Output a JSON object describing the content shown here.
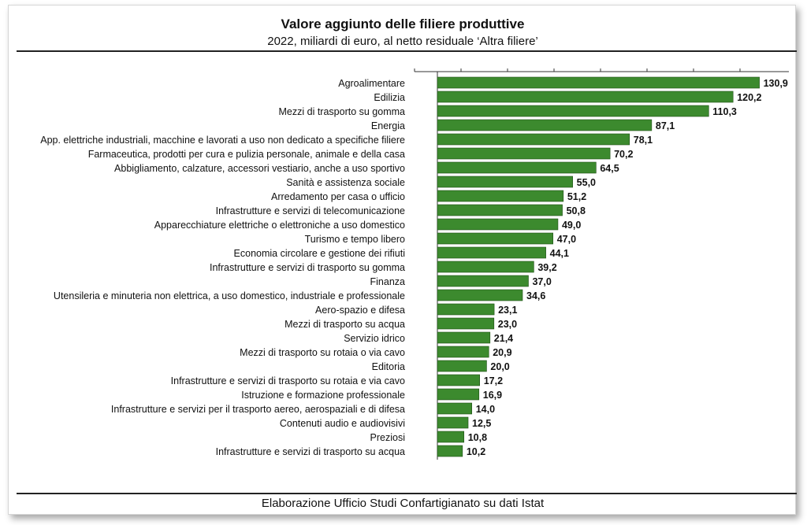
{
  "title": "Valore aggiunto delle filiere produttive",
  "subtitle": "2022, miliardi di euro, al netto residuale ‘Altra filiere’",
  "source": "Elaborazione Ufficio Studi Confartigianato su dati Istat",
  "colors": {
    "bar": "#3c8a2e",
    "bar_edge": "#1f4f17",
    "axis": "#333333"
  },
  "chart_data": {
    "type": "bar",
    "orientation": "horizontal",
    "title": "Valore aggiunto delle filiere produttive",
    "subtitle": "2022, miliardi di euro, al netto residuale ‘Altra filiere’",
    "xlim": [
      0,
      140
    ],
    "grid": false,
    "categories": [
      "Agroalimentare",
      "Edilizia",
      "Mezzi di trasporto su gomma",
      "Energia",
      "App. elettriche industriali, macchine e lavorati a uso non dedicato a specifiche filiere",
      "Farmaceutica, prodotti per cura e pulizia personale, animale e della casa",
      "Abbigliamento, calzature, accessori vestiario, anche a uso sportivo",
      "Sanità e assistenza sociale",
      "Arredamento per casa o ufficio",
      "Infrastrutture e servizi di telecomunicazione",
      "Apparecchiature elettriche o elettroniche a uso domestico",
      "Turismo e tempo libero",
      "Economia circolare e gestione dei rifiuti",
      "Infrastrutture e servizi di trasporto su gomma",
      "Finanza",
      "Utensileria e minuteria non elettrica, a uso domestico, industriale e professionale",
      "Aero-spazio e difesa",
      "Mezzi di trasporto su acqua",
      "Servizio idrico",
      "Mezzi di trasporto su rotaia o via cavo",
      "Editoria",
      "Infrastrutture e servizi di trasporto su rotaia e via cavo",
      "Istruzione e formazione professionale",
      "Infrastrutture e servizi per il trasporto aereo, aerospaziali e di difesa",
      "Contenuti audio e audiovisivi",
      "Preziosi",
      "Infrastrutture e servizi di trasporto su acqua"
    ],
    "values": [
      130.9,
      120.2,
      110.3,
      87.1,
      78.1,
      70.2,
      64.5,
      55.0,
      51.2,
      50.8,
      49.0,
      47.0,
      44.1,
      39.2,
      37.0,
      34.6,
      23.1,
      23.0,
      21.4,
      20.9,
      20.0,
      17.2,
      16.9,
      14.0,
      12.5,
      10.8,
      10.2
    ],
    "value_labels": [
      "130,9",
      "120,2",
      "110,3",
      "87,1",
      "78,1",
      "70,2",
      "64,5",
      "55,0",
      "51,2",
      "50,8",
      "49,0",
      "47,0",
      "44,1",
      "39,2",
      "37,0",
      "34,6",
      "23,1",
      "23,0",
      "21,4",
      "20,9",
      "20,0",
      "17,2",
      "16,9",
      "14,0",
      "12,5",
      "10,8",
      "10,2"
    ]
  }
}
